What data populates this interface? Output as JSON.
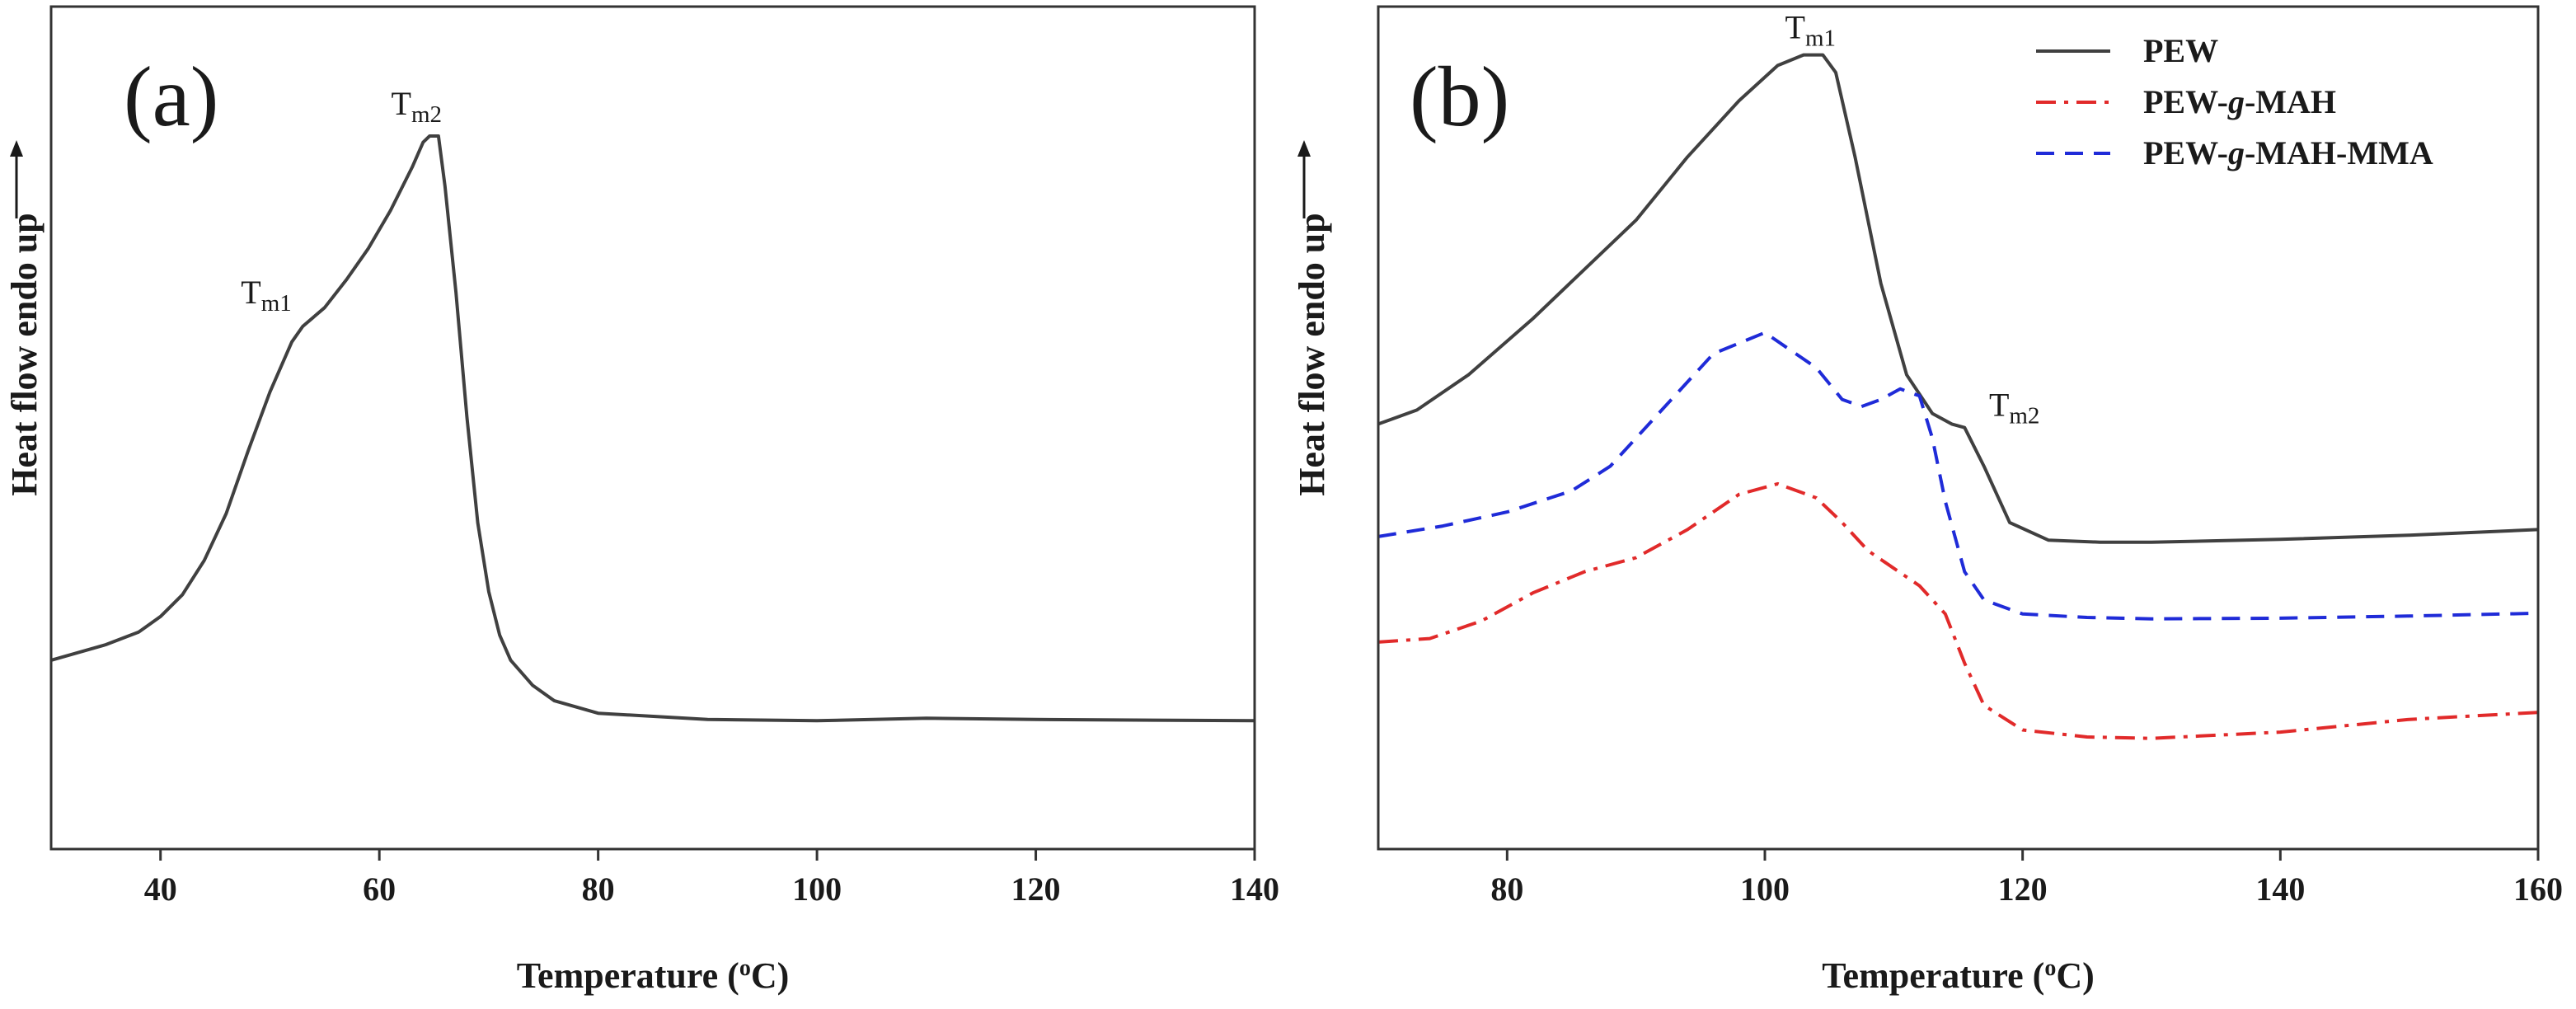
{
  "chart_data": [
    {
      "type": "line",
      "panel_label": "(a)",
      "xlabel_main": "Temperature (",
      "xlabel_sup": "o",
      "xlabel_end": "C)",
      "ylabel": "Heat flow endo up",
      "xlim": [
        30,
        140
      ],
      "ylim": [
        0,
        100
      ],
      "y_ticks_shown": false,
      "x_ticks": [
        40,
        60,
        80,
        100,
        120,
        140
      ],
      "x_tick_labels": [
        "40",
        "60",
        "80",
        "100",
        "120",
        "140"
      ],
      "series": [
        {
          "name": "PEW",
          "color": "#404040",
          "dash": "solid",
          "x": [
            30,
            35,
            38,
            40,
            42,
            44,
            46,
            48,
            50,
            52,
            53,
            55,
            57,
            59,
            61,
            63,
            64,
            64.6,
            65.4,
            66,
            67,
            68,
            69,
            70,
            71,
            72,
            74,
            76,
            80,
            90,
            100,
            110,
            120,
            140
          ],
          "y": [
            16,
            18.5,
            20.5,
            23,
            26.5,
            32,
            39.5,
            49.5,
            59,
            67,
            69.5,
            72.5,
            77,
            82,
            88,
            95,
            99,
            100,
            100,
            92,
            75,
            55,
            38,
            27,
            20,
            16,
            12,
            9.5,
            7.5,
            6.5,
            6.3,
            6.7,
            6.5,
            6.3
          ]
        }
      ],
      "annotations": [
        {
          "text": "T",
          "sub": "m1",
          "x": 53,
          "y": 69.5
        },
        {
          "text": "T",
          "sub": "m2",
          "x": 65,
          "y": 100
        }
      ]
    },
    {
      "type": "line",
      "panel_label": "(b)",
      "xlabel_main": "Temperature (",
      "xlabel_sup": "o",
      "xlabel_end": "C)",
      "ylabel": "Heat flow endo up",
      "xlim": [
        70,
        160
      ],
      "ylim": [
        0,
        100
      ],
      "y_ticks_shown": false,
      "x_ticks": [
        80,
        100,
        120,
        140,
        160
      ],
      "x_tick_labels": [
        "80",
        "100",
        "120",
        "140",
        "160"
      ],
      "series": [
        {
          "name": "PEW",
          "color": "#404040",
          "dash": "solid",
          "x": [
            70,
            73,
            77,
            82,
            86,
            90,
            94,
            98,
            101,
            103,
            104.5,
            105.5,
            107,
            109,
            111,
            113,
            114.5,
            115.5,
            117,
            119,
            122,
            126,
            130,
            140,
            150,
            160
          ],
          "y": [
            52,
            54,
            59,
            67,
            74,
            81,
            90,
            98,
            103,
            104.5,
            104.5,
            102,
            90,
            72,
            59,
            53.5,
            52,
            51.5,
            46,
            38,
            35.5,
            35.2,
            35.2,
            35.6,
            36.2,
            37
          ]
        },
        {
          "name": "PEW-g-MAH-MMA",
          "color": "#1f2bd8",
          "dash": "long-dash",
          "x": [
            70,
            75,
            80,
            85,
            88,
            92,
            96,
            100,
            104,
            106,
            107.5,
            109,
            110.5,
            112,
            113,
            114,
            115.5,
            117,
            120,
            125,
            130,
            140,
            150,
            160
          ],
          "y": [
            36,
            37.5,
            39.5,
            42.5,
            46,
            54,
            62,
            65,
            60,
            55.5,
            54.5,
            55.5,
            57,
            56,
            50,
            41,
            31,
            27,
            25,
            24.5,
            24.3,
            24.4,
            24.7,
            25.1
          ]
        },
        {
          "name": "PEW-g-MAH",
          "color": "#e12a2a",
          "dash": "dash-dot",
          "x": [
            70,
            74,
            78,
            82,
            86,
            90,
            94,
            98,
            101,
            104,
            106,
            108,
            110,
            112,
            114,
            115.5,
            117,
            120,
            125,
            130,
            140,
            150,
            160
          ],
          "y": [
            21,
            21.5,
            24,
            28,
            31,
            33,
            37,
            42,
            43.5,
            41.5,
            38,
            34,
            31.5,
            29,
            25,
            18,
            12,
            8.5,
            7.5,
            7.3,
            8.2,
            10,
            11
          ]
        }
      ],
      "annotations": [
        {
          "text": "T",
          "sub": "m1",
          "x": 104,
          "y": 104.5
        },
        {
          "text": "T",
          "sub": "m2",
          "x": 116.5,
          "y": 51.5
        }
      ],
      "legend_location": "top-right",
      "legend": [
        {
          "name_before": "PEW",
          "name_italic": "",
          "name_after": "",
          "color": "#404040",
          "dash": "solid"
        },
        {
          "name_before": "PEW-",
          "name_italic": "g",
          "name_after": "-MAH",
          "color": "#e12a2a",
          "dash": "dash-dot"
        },
        {
          "name_before": "PEW-",
          "name_italic": "g",
          "name_after": "-MAH-MMA",
          "color": "#1f2bd8",
          "dash": "long-dash"
        }
      ]
    }
  ]
}
